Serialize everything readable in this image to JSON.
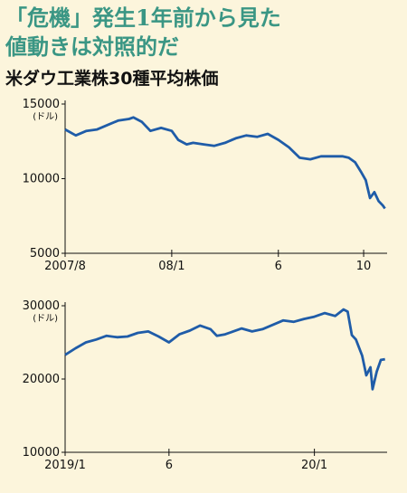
{
  "title_lines": [
    "「危機」発生1年前から見た",
    "値動きは対照的だ"
  ],
  "subtitle": "米ダウ工業株30種平均株価",
  "chart_data": [
    {
      "type": "line",
      "y_unit_label": "(ドル)",
      "color": "#1f5ca8",
      "grid": false,
      "x": [
        0,
        0.5,
        1,
        1.5,
        2,
        2.5,
        3,
        3.2,
        3.6,
        4,
        4.5,
        5,
        5.3,
        5.7,
        6,
        6.5,
        7,
        7.5,
        8,
        8.5,
        9,
        9.5,
        10,
        10.5,
        11,
        11.5,
        12,
        12.5,
        13,
        13.3,
        13.6,
        13.9,
        14.1,
        14.3,
        14.5,
        14.7,
        14.9,
        15
      ],
      "values": [
        13300,
        12900,
        13200,
        13300,
        13600,
        13900,
        14000,
        14100,
        13800,
        13200,
        13400,
        13200,
        12600,
        12300,
        12400,
        12300,
        12200,
        12400,
        12700,
        12900,
        12800,
        13000,
        12600,
        12100,
        11400,
        11300,
        11500,
        11500,
        11500,
        11400,
        11100,
        10400,
        9900,
        8700,
        9100,
        8500,
        8200,
        8000
      ],
      "xlim": [
        0,
        15.1
      ],
      "ylim": [
        5000,
        15000
      ],
      "xticks": [
        {
          "value": 0,
          "label": "2007/8"
        },
        {
          "value": 5,
          "label": "08/1"
        },
        {
          "value": 10,
          "label": "6"
        },
        {
          "value": 14,
          "label": "10"
        }
      ],
      "yticks": [
        5000,
        10000,
        15000
      ]
    },
    {
      "type": "line",
      "y_unit_label": "(ドル)",
      "color": "#1f5ca8",
      "grid": false,
      "x": [
        0,
        0.5,
        1,
        1.5,
        2,
        2.5,
        3,
        3.5,
        4,
        4.5,
        5,
        5.5,
        6,
        6.5,
        7,
        7.3,
        7.7,
        8,
        8.5,
        9,
        9.5,
        10,
        10.5,
        11,
        11.5,
        12,
        12.5,
        13,
        13.4,
        13.6,
        13.8,
        14,
        14.3,
        14.5,
        14.7,
        14.8,
        15,
        15.2,
        15.4
      ],
      "values": [
        23300,
        24200,
        25000,
        25400,
        25900,
        25700,
        25800,
        26300,
        26500,
        25800,
        25000,
        26100,
        26600,
        27300,
        26800,
        25900,
        26100,
        26400,
        26900,
        26500,
        26800,
        27400,
        28000,
        27800,
        28200,
        28500,
        29000,
        28600,
        29500,
        29200,
        26000,
        25400,
        23200,
        20500,
        21600,
        18600,
        21000,
        22600,
        22700
      ],
      "xlim": [
        0,
        15.5
      ],
      "ylim": [
        10000,
        30000
      ],
      "xticks": [
        {
          "value": 0,
          "label": "2019/1"
        },
        {
          "value": 5,
          "label": "6"
        },
        {
          "value": 12,
          "label": "20/1"
        }
      ],
      "yticks": [
        10000,
        20000,
        30000
      ]
    }
  ]
}
